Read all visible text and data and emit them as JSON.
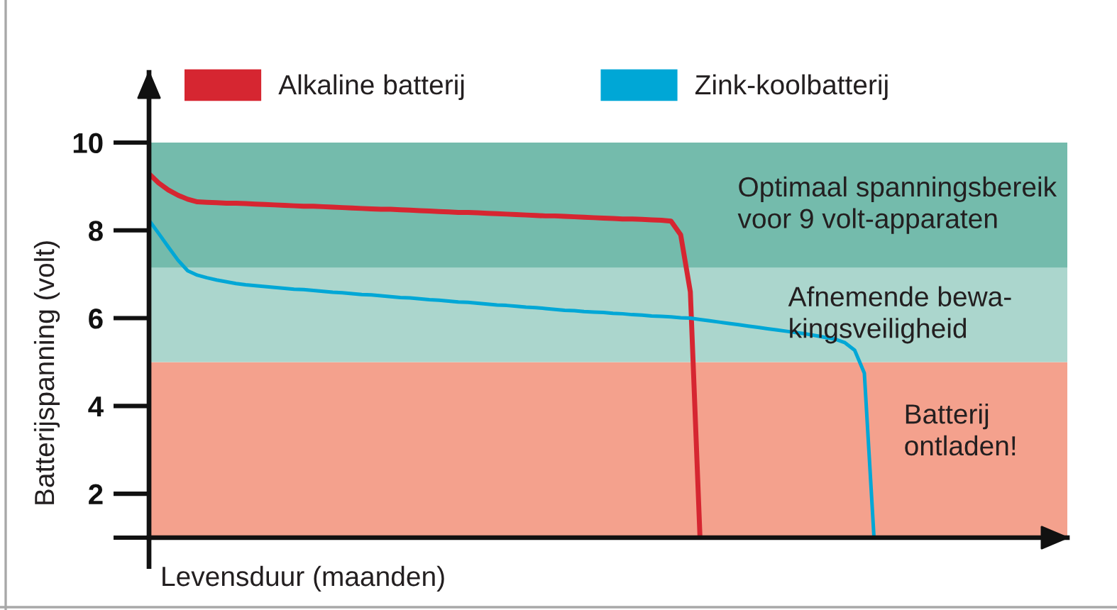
{
  "chart_data": {
    "type": "line",
    "ylabel": "Batterijspanning (volt)",
    "xlabel": "Levensduur (maanden)",
    "categories": [
      null,
      null,
      null,
      null,
      null,
      null,
      null,
      null,
      null,
      null,
      null,
      null,
      null,
      null,
      null,
      null,
      null,
      null,
      null,
      null,
      null,
      null,
      null,
      null,
      null,
      null,
      null,
      null,
      null,
      null,
      null,
      null,
      null,
      null,
      null,
      null,
      null,
      null,
      null,
      null,
      null,
      null,
      null,
      null,
      null,
      null,
      null,
      null,
      null,
      null,
      null,
      null,
      null,
      null,
      null,
      null,
      null,
      null,
      null,
      null,
      null,
      null,
      null,
      null,
      null,
      null,
      null,
      null,
      null,
      null,
      null,
      null,
      null,
      null,
      null,
      null,
      null,
      null,
      null,
      null,
      null,
      null,
      null,
      null,
      null,
      null,
      null,
      null,
      null,
      null,
      null,
      null,
      null,
      null,
      null,
      null
    ],
    "series": [
      {
        "name": "Alkaline batterij",
        "color": "#d62631",
        "values": [
          9.29,
          9.08,
          8.92,
          8.8,
          8.71,
          8.65,
          8.64,
          8.63,
          8.62,
          8.62,
          8.61,
          8.6,
          8.59,
          8.58,
          8.57,
          8.56,
          8.55,
          8.55,
          8.54,
          8.53,
          8.52,
          8.51,
          8.5,
          8.49,
          8.48,
          8.48,
          8.47,
          8.46,
          8.45,
          8.44,
          8.43,
          8.42,
          8.41,
          8.41,
          8.4,
          8.39,
          8.38,
          8.37,
          8.36,
          8.35,
          8.34,
          8.33,
          8.33,
          8.32,
          8.31,
          8.3,
          8.29,
          8.28,
          8.27,
          8.26,
          8.26,
          8.25,
          8.24,
          8.23,
          8.21,
          7.9,
          6.6,
          1.0,
          null,
          null,
          null,
          null,
          null,
          null,
          null,
          null,
          null,
          null,
          null,
          null,
          null,
          null,
          null,
          null,
          null,
          null,
          null,
          null,
          null,
          null,
          null,
          null,
          null,
          null,
          null,
          null,
          null,
          null,
          null,
          null,
          null,
          null,
          null,
          null,
          null,
          null
        ]
      },
      {
        "name": "Zink-koolbatterij",
        "color": "#00a7d6",
        "values": [
          8.23,
          7.93,
          7.62,
          7.32,
          7.08,
          6.98,
          6.92,
          6.87,
          6.83,
          6.79,
          6.76,
          6.74,
          6.72,
          6.7,
          6.68,
          6.66,
          6.65,
          6.63,
          6.61,
          6.59,
          6.58,
          6.56,
          6.54,
          6.53,
          6.51,
          6.49,
          6.47,
          6.46,
          6.44,
          6.42,
          6.41,
          6.39,
          6.37,
          6.36,
          6.34,
          6.32,
          6.3,
          6.29,
          6.27,
          6.25,
          6.24,
          6.22,
          6.2,
          6.18,
          6.17,
          6.15,
          6.14,
          6.13,
          6.11,
          6.1,
          6.08,
          6.07,
          6.05,
          6.04,
          6.03,
          6.01,
          6.0,
          5.97,
          5.94,
          5.91,
          5.88,
          5.85,
          5.82,
          5.79,
          5.76,
          5.73,
          5.7,
          5.67,
          5.64,
          5.6,
          5.56,
          5.52,
          5.44,
          5.27,
          4.75,
          1.0,
          null,
          null,
          null,
          null,
          null,
          null,
          null,
          null,
          null,
          null,
          null,
          null,
          null,
          null,
          null,
          null,
          null,
          null,
          null,
          null
        ]
      }
    ],
    "ylim": [
      1,
      11.6
    ],
    "yticks": [
      {
        "value": 1,
        "label": null
      },
      2,
      4,
      6,
      8,
      10
    ],
    "bands": [
      {
        "axis": "y",
        "from": 1,
        "to": 5,
        "label": "Batterij\nontladen!",
        "color": "#f4a18d"
      },
      {
        "axis": "y",
        "from": 5,
        "to": 7.15,
        "label": "Afnemende bewa-\nkingsveiligheid",
        "color": "#abd6cd"
      },
      {
        "axis": "y",
        "from": 7.15,
        "to": 10,
        "label": "Optimaal spanningsbereik\nvoor 9 volt-apparaten",
        "color": "#74bbac"
      }
    ],
    "legend": "top"
  }
}
